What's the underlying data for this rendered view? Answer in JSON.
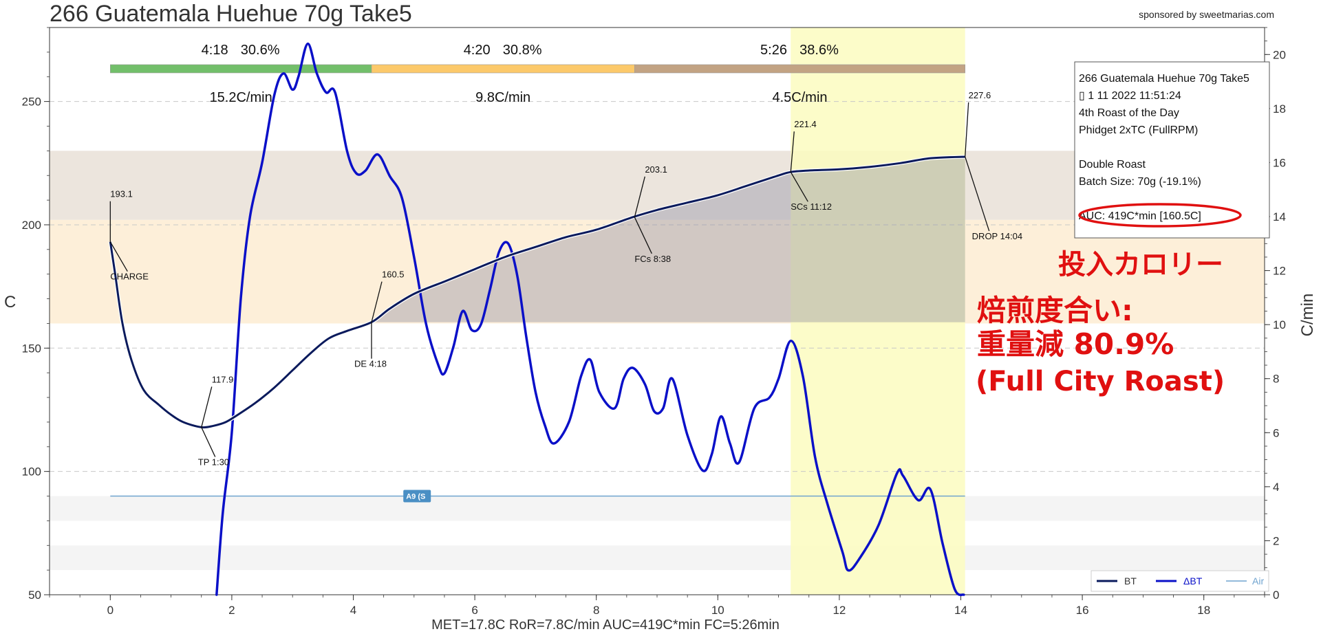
{
  "title": "266 Guatemala Huehue 70g Take5",
  "sponsor": "sponsored by sweetmarias.com",
  "footer": "MET=17.8C   RoR=7.8C/min   AUC=419C*min   FC=5:26min",
  "colors": {
    "bt": "#0a1a5c",
    "dbt": "#0a10c8",
    "air": "#6fa3cf",
    "phase_dry": "#72bf6a",
    "phase_maillard": "#fcc96a",
    "phase_dev": "#c2a383",
    "dev_band": "#fbfbbf",
    "band_upper": "#ece5dd",
    "band_lower": "#fdefd9",
    "annotation": "#e01010"
  },
  "chart_data": {
    "type": "line",
    "xlabel": "",
    "ylabel": "C",
    "y2label": "C/min",
    "xlim": [
      -1,
      19
    ],
    "ylim": [
      50,
      280
    ],
    "y2lim": [
      0,
      21
    ],
    "x_ticks": [
      "0",
      "2",
      "4",
      "6",
      "8",
      "10",
      "12",
      "14",
      "16",
      "18"
    ],
    "y_ticks": [
      "50",
      "100",
      "150",
      "200",
      "250"
    ],
    "y2_ticks": [
      "0",
      "2",
      "4",
      "6",
      "8",
      "10",
      "12",
      "14",
      "16",
      "18",
      "20"
    ],
    "grid": "horizontal-dashed",
    "legend_placement": "bottom-right",
    "series": [
      {
        "name": "BT",
        "axis": "left",
        "x": [
          0,
          0.08,
          0.2,
          0.35,
          0.55,
          0.8,
          1.0,
          1.2,
          1.5,
          1.7,
          1.9,
          2.1,
          2.4,
          2.7,
          3.0,
          3.3,
          3.6,
          3.9,
          4.3,
          4.6,
          5.0,
          5.5,
          6.0,
          6.5,
          7.0,
          7.5,
          8.0,
          8.6,
          9.0,
          9.5,
          10.0,
          10.5,
          11.0,
          11.2,
          11.5,
          12.0,
          12.5,
          13.0,
          13.5,
          14.07
        ],
        "y": [
          193.1,
          180,
          160,
          145,
          133,
          127,
          123,
          120,
          117.9,
          118.5,
          120,
          123,
          128,
          134,
          141,
          148,
          154,
          157,
          160.5,
          166,
          172,
          177,
          182,
          187,
          191,
          195,
          198,
          203.1,
          206,
          209,
          212,
          216,
          220,
          221.4,
          222,
          222.5,
          223.5,
          225,
          227,
          227.6
        ]
      },
      {
        "name": "ΔBT",
        "axis": "right",
        "x": [
          1.75,
          1.85,
          2.0,
          2.15,
          2.3,
          2.5,
          2.7,
          2.85,
          3.0,
          3.1,
          3.25,
          3.4,
          3.55,
          3.7,
          3.9,
          4.05,
          4.2,
          4.4,
          4.6,
          4.8,
          5.0,
          5.2,
          5.4,
          5.5,
          5.65,
          5.8,
          5.95,
          6.1,
          6.25,
          6.4,
          6.55,
          6.7,
          6.85,
          7.0,
          7.15,
          7.3,
          7.55,
          7.75,
          7.9,
          8.05,
          8.3,
          8.45,
          8.6,
          8.8,
          8.95,
          9.1,
          9.25,
          9.5,
          9.75,
          9.9,
          10.05,
          10.2,
          10.35,
          10.6,
          10.85,
          11.0,
          11.2,
          11.4,
          11.6,
          11.8,
          12.05,
          12.15,
          12.35,
          12.65,
          12.95,
          13.05,
          13.3,
          13.5,
          13.7,
          13.9,
          14.05
        ],
        "y": [
          0,
          3,
          6,
          11,
          14,
          16,
          18.5,
          19.3,
          18.7,
          19.2,
          20.4,
          19.3,
          18.6,
          18.6,
          16.4,
          15.6,
          15.7,
          16.3,
          15.5,
          14.7,
          12.5,
          10,
          8.5,
          8.2,
          9.2,
          10.5,
          9.8,
          10,
          11.3,
          12.7,
          13.0,
          11.8,
          9.5,
          7.5,
          6.3,
          5.6,
          6.4,
          8.1,
          8.7,
          7.5,
          6.9,
          8.0,
          8.4,
          7.8,
          6.8,
          6.9,
          8.0,
          5.9,
          4.6,
          5.2,
          6.6,
          5.6,
          4.9,
          6.9,
          7.3,
          8.0,
          9.4,
          8.1,
          5.1,
          3.4,
          1.6,
          0.9,
          1.4,
          2.6,
          4.5,
          4.4,
          3.5,
          3.9,
          1.9,
          0.2,
          0
        ]
      },
      {
        "name": "Air",
        "axis": "left",
        "x": [
          0,
          14.07
        ],
        "y": [
          90,
          90
        ]
      }
    ],
    "phases": [
      {
        "time": "4:18",
        "percent": "30.6%",
        "ror": "15.2C/min",
        "start": 0,
        "end": 4.3
      },
      {
        "time": "4:20",
        "percent": "30.8%",
        "ror": "9.8C/min",
        "start": 4.3,
        "end": 8.63
      },
      {
        "time": "5:26",
        "percent": "38.6%",
        "ror": "4.5C/min",
        "start": 8.63,
        "end": 14.07
      }
    ],
    "events": [
      {
        "label": "CHARGE",
        "value": "193.1",
        "x": 0,
        "y": 193.1
      },
      {
        "label": "TP 1:30",
        "value": "117.9",
        "x": 1.5,
        "y": 117.9
      },
      {
        "label": "DE 4:18",
        "value": "160.5",
        "x": 4.3,
        "y": 160.5
      },
      {
        "label": "FCs 8:38",
        "value": "203.1",
        "x": 8.63,
        "y": 203.1
      },
      {
        "label": "SCs 11:12",
        "value": "221.4",
        "x": 11.2,
        "y": 221.4
      },
      {
        "label": "DROP 14:04",
        "value": "227.6",
        "x": 14.07,
        "y": 227.6
      }
    ],
    "bands": [
      {
        "y_from": 202,
        "y_to": 230
      },
      {
        "y_from": 160,
        "y_to": 202
      }
    ],
    "air_bands": [
      {
        "y_from": 80,
        "y_to": 90
      },
      {
        "y_from": 60,
        "y_to": 70
      }
    ],
    "dev_window": {
      "x_from": 11.2,
      "x_to": 14.07
    },
    "auc_shade": {
      "x_from": 4.3,
      "x_to": 14.07
    },
    "air_marker": {
      "label": "A9 (S",
      "x": 5.05
    }
  },
  "info_box": {
    "lines": [
      "266 Guatemala Huehue 70g Take5",
      "▯ 1 11 2022 11:51:24",
      "4th Roast of the Day",
      "Phidget 2xTC (FullRPM)",
      "",
      "Double Roast",
      "Batch Size: 70g (-19.1%)",
      "",
      "AUC: 419C*min [160.5C]"
    ]
  },
  "annotations": {
    "calorie": "投入カロリー",
    "roast_degree": "焙煎度合い:",
    "weight_loss": "重量減  80.9%",
    "roast_name": "(Full City Roast)"
  }
}
